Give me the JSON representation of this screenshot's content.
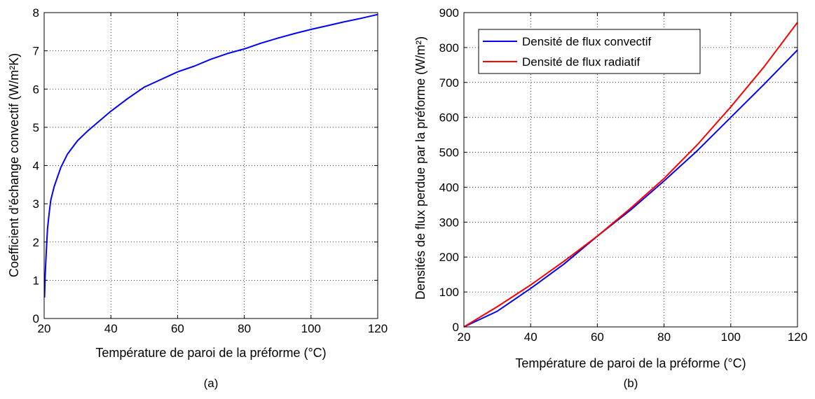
{
  "chart_data": [
    {
      "type": "line",
      "caption": "(a)",
      "xlabel": "Température de paroi de la préforme (°C)",
      "ylabel": "Coefficient d'échange convectif (W/m²K)",
      "xlim": [
        20,
        120
      ],
      "ylim": [
        0,
        8
      ],
      "xticks": [
        "20",
        "40",
        "60",
        "80",
        "100",
        "120"
      ],
      "yticks": [
        "0",
        "1",
        "2",
        "3",
        "4",
        "5",
        "6",
        "7",
        "8"
      ],
      "grid": true,
      "series": [
        {
          "color": "#0000ff",
          "x": [
            20.1,
            20.3,
            20.6,
            21,
            21.5,
            22,
            23,
            24,
            25,
            27,
            30,
            33,
            35,
            40,
            45,
            50,
            55,
            60,
            65,
            70,
            75,
            80,
            85,
            90,
            95,
            100,
            105,
            110,
            115,
            120
          ],
          "y": [
            0.55,
            1.1,
            1.7,
            2.35,
            2.75,
            3.1,
            3.45,
            3.7,
            3.95,
            4.3,
            4.65,
            4.9,
            5.05,
            5.42,
            5.75,
            6.05,
            6.25,
            6.45,
            6.6,
            6.78,
            6.93,
            7.05,
            7.2,
            7.33,
            7.45,
            7.56,
            7.66,
            7.76,
            7.85,
            7.95
          ]
        }
      ]
    },
    {
      "type": "line",
      "caption": "(b)",
      "xlabel": "Température de paroi de la préforme (°C)",
      "ylabel": "Densités de flux perdue par la préforme (W/m²)",
      "xlim": [
        20,
        120
      ],
      "ylim": [
        0,
        900
      ],
      "xticks": [
        "20",
        "40",
        "60",
        "80",
        "100",
        "120"
      ],
      "yticks": [
        "0",
        "100",
        "200",
        "300",
        "400",
        "500",
        "600",
        "700",
        "800",
        "900"
      ],
      "grid": true,
      "legend": "top-left",
      "series": [
        {
          "name": "Densité de flux convectif",
          "color": "#0000ff",
          "x": [
            20,
            30,
            40,
            50,
            60,
            70,
            80,
            90,
            100,
            110,
            120
          ],
          "y": [
            0,
            45,
            110,
            180,
            260,
            335,
            418,
            505,
            600,
            695,
            793
          ]
        },
        {
          "name": "Densité de flux radiatif",
          "color": "#ff0000",
          "x": [
            20,
            30,
            40,
            50,
            60,
            70,
            80,
            90,
            100,
            110,
            120
          ],
          "y": [
            0,
            58,
            120,
            188,
            260,
            340,
            425,
            522,
            630,
            745,
            872
          ]
        }
      ]
    }
  ]
}
